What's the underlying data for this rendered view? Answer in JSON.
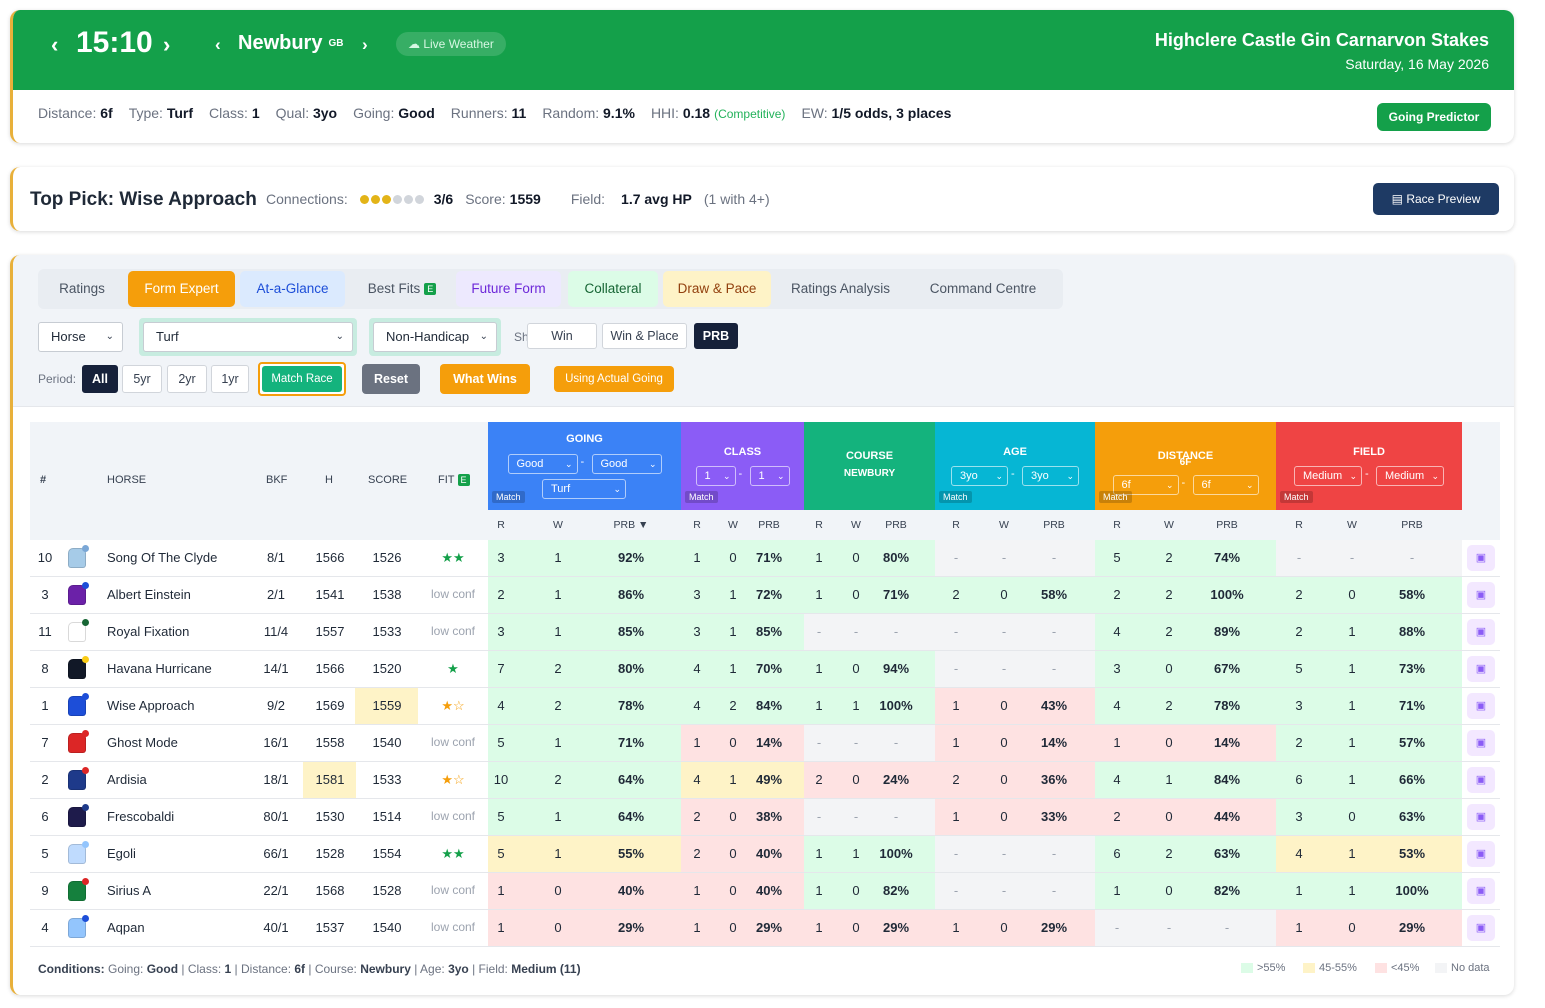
{
  "header": {
    "time": "15:10",
    "venue": "Newbury",
    "country": "GB",
    "weather_label": "Live Weather",
    "race_title": "Highclere Castle Gin Carnarvon Stakes",
    "race_date": "Saturday, 16 May 2026",
    "going_predictor": "Going Predictor",
    "meta": [
      {
        "label": "Distance:",
        "value": "6f"
      },
      {
        "label": "Type:",
        "value": "Turf"
      },
      {
        "label": "Class:",
        "value": "1"
      },
      {
        "label": "Qual:",
        "value": "3yo"
      },
      {
        "label": "Going:",
        "value": "Good"
      },
      {
        "label": "Runners:",
        "value": "11"
      },
      {
        "label": "Random:",
        "value": "9.1%"
      },
      {
        "label": "HHI:",
        "value": "0.18"
      },
      {
        "label": "EW:",
        "value": "1/5 odds, 3 places"
      }
    ],
    "hhi_note": "(Competitive)"
  },
  "top_pick": {
    "title": "Top Pick: Wise Approach",
    "connections_label": "Connections:",
    "connections_filled": 3,
    "connections_total": 6,
    "connections_value": "3/6",
    "score_label": "Score:",
    "score_value": "1559",
    "field_label": "Field:",
    "field_value": "1.7 avg HP",
    "field_note": "(1 with 4+)",
    "preview_btn": "Race Preview"
  },
  "tabs": [
    "Ratings",
    "Form Expert",
    "At-a-Glance",
    "Best Fits",
    "Future Form",
    "Collateral",
    "Draw & Pace",
    "Ratings Analysis",
    "Command Centre"
  ],
  "tab_badge": "E",
  "filters": {
    "horse": "Horse",
    "surface": "Turf",
    "handicap": "Non-Handicap",
    "show_label": "Show:",
    "show_options": [
      "Win",
      "Win & Place",
      "PRB"
    ],
    "period_label": "Period:",
    "periods": [
      "All",
      "5yr",
      "2yr",
      "1yr"
    ],
    "match_race": "Match Race",
    "reset": "Reset",
    "what_wins": "What Wins",
    "using_actual": "Using Actual Going"
  },
  "table": {
    "headers": {
      "num": "#",
      "horse": "HORSE",
      "bkf": "BKF",
      "h": "H",
      "score": "SCORE",
      "fit": "FIT",
      "fit_badge": "E"
    },
    "groups": [
      {
        "title": "GOING",
        "color": "#3b82f6",
        "sel1": "Good",
        "sel2": "Good",
        "sel3": "Turf",
        "match": "Match"
      },
      {
        "title": "CLASS",
        "color": "#8b5cf6",
        "sel1": "1",
        "sel2": "1",
        "match": "Match"
      },
      {
        "title": "COURSE",
        "sub": "NEWBURY",
        "color": "#14b37d"
      },
      {
        "title": "AGE",
        "color": "#06b6d4",
        "sel1": "3yo",
        "sel2": "3yo",
        "match": "Match"
      },
      {
        "title": "DISTANCE",
        "sub": "6F",
        "color": "#f59e0b",
        "sel1": "6f",
        "sel2": "6f",
        "match": "Match"
      },
      {
        "title": "FIELD",
        "color": "#ef4444",
        "sel1": "Medium",
        "sel2": "Medium",
        "match": "Match"
      }
    ],
    "sub_headers": [
      "R",
      "W",
      "PRB ▼",
      "R",
      "W",
      "PRB",
      "R",
      "W",
      "PRB",
      "R",
      "W",
      "PRB",
      "R",
      "W",
      "PRB",
      "R",
      "W",
      "PRB"
    ],
    "rows": [
      {
        "num": "10",
        "horse": "Song Of The Clyde",
        "bkf": "8/1",
        "h": "1566",
        "score": "1526",
        "fit": "★★",
        "fit_color": "#14a04a",
        "silk": "#a6cbe8",
        "dot": "#7aa7d6",
        "going": [
          "3",
          "1",
          "92%",
          "g"
        ],
        "class": [
          "1",
          "0",
          "71%",
          "g"
        ],
        "course": [
          "1",
          "0",
          "80%",
          "g"
        ],
        "age": [
          "-",
          "-",
          "-",
          "n"
        ],
        "dist": [
          "5",
          "2",
          "74%",
          "g"
        ],
        "field": [
          "-",
          "-",
          "-",
          "n"
        ]
      },
      {
        "num": "3",
        "horse": "Albert Einstein",
        "bkf": "2/1",
        "h": "1541",
        "score": "1538",
        "fit": "low conf",
        "silk": "#6b21a8",
        "dot": "#1d4ed8",
        "going": [
          "2",
          "1",
          "86%",
          "g"
        ],
        "class": [
          "3",
          "1",
          "72%",
          "g"
        ],
        "course": [
          "1",
          "0",
          "71%",
          "g"
        ],
        "age": [
          "2",
          "0",
          "58%",
          "g"
        ],
        "dist": [
          "2",
          "2",
          "100%",
          "g"
        ],
        "field": [
          "2",
          "0",
          "58%",
          "g"
        ]
      },
      {
        "num": "11",
        "horse": "Royal Fixation",
        "bkf": "11/4",
        "h": "1557",
        "score": "1533",
        "fit": "low conf",
        "silk": "#ffffff",
        "dot": "#166534",
        "going": [
          "3",
          "1",
          "85%",
          "g"
        ],
        "class": [
          "3",
          "1",
          "85%",
          "g"
        ],
        "course": [
          "-",
          "-",
          "-",
          "n"
        ],
        "age": [
          "-",
          "-",
          "-",
          "n"
        ],
        "dist": [
          "4",
          "2",
          "89%",
          "g"
        ],
        "field": [
          "2",
          "1",
          "88%",
          "g"
        ]
      },
      {
        "num": "8",
        "horse": "Havana Hurricane",
        "bkf": "14/1",
        "h": "1566",
        "score": "1520",
        "fit": "★",
        "fit_color": "#14a04a",
        "silk": "#111827",
        "dot": "#facc15",
        "going": [
          "7",
          "2",
          "80%",
          "g"
        ],
        "class": [
          "4",
          "1",
          "70%",
          "g"
        ],
        "course": [
          "1",
          "0",
          "94%",
          "g"
        ],
        "age": [
          "-",
          "-",
          "-",
          "n"
        ],
        "dist": [
          "3",
          "0",
          "67%",
          "g"
        ],
        "field": [
          "5",
          "1",
          "73%",
          "g"
        ]
      },
      {
        "num": "1",
        "horse": "Wise Approach",
        "bkf": "9/2",
        "h": "1569",
        "score": "1559",
        "score_hl": true,
        "fit": "★☆",
        "fit_color": "#f59e0b",
        "silk": "#1d4ed8",
        "dot": "#1d4ed8",
        "going": [
          "4",
          "2",
          "78%",
          "g"
        ],
        "class": [
          "4",
          "2",
          "84%",
          "g"
        ],
        "course": [
          "1",
          "1",
          "100%",
          "g"
        ],
        "age": [
          "1",
          "0",
          "43%",
          "r"
        ],
        "dist": [
          "4",
          "2",
          "78%",
          "g"
        ],
        "field": [
          "3",
          "1",
          "71%",
          "g"
        ]
      },
      {
        "num": "7",
        "horse": "Ghost Mode",
        "bkf": "16/1",
        "h": "1558",
        "score": "1540",
        "fit": "low conf",
        "silk": "#dc2626",
        "dot": "#dc2626",
        "going": [
          "5",
          "1",
          "71%",
          "g"
        ],
        "class": [
          "1",
          "0",
          "14%",
          "r"
        ],
        "course": [
          "-",
          "-",
          "-",
          "n"
        ],
        "age": [
          "1",
          "0",
          "14%",
          "r"
        ],
        "dist": [
          "1",
          "0",
          "14%",
          "r"
        ],
        "field": [
          "2",
          "1",
          "57%",
          "g"
        ]
      },
      {
        "num": "2",
        "horse": "Ardisia",
        "bkf": "18/1",
        "h": "1581",
        "h_hl": true,
        "score": "1533",
        "fit": "★☆",
        "fit_color": "#f59e0b",
        "silk": "#1e3a8a",
        "dot": "#dc2626",
        "going": [
          "10",
          "2",
          "64%",
          "g"
        ],
        "class": [
          "4",
          "1",
          "49%",
          "y"
        ],
        "course": [
          "2",
          "0",
          "24%",
          "r"
        ],
        "age": [
          "2",
          "0",
          "36%",
          "r"
        ],
        "dist": [
          "4",
          "1",
          "84%",
          "g"
        ],
        "field": [
          "6",
          "1",
          "66%",
          "g"
        ]
      },
      {
        "num": "6",
        "horse": "Frescobaldi",
        "bkf": "80/1",
        "h": "1530",
        "score": "1514",
        "fit": "low conf",
        "silk": "#1e1b4b",
        "dot": "#1e3a8a",
        "going": [
          "5",
          "1",
          "64%",
          "g"
        ],
        "class": [
          "2",
          "0",
          "38%",
          "r"
        ],
        "course": [
          "-",
          "-",
          "-",
          "n"
        ],
        "age": [
          "1",
          "0",
          "33%",
          "r"
        ],
        "dist": [
          "2",
          "0",
          "44%",
          "r"
        ],
        "field": [
          "3",
          "0",
          "63%",
          "g"
        ]
      },
      {
        "num": "5",
        "horse": "Egoli",
        "bkf": "66/1",
        "h": "1528",
        "score": "1554",
        "fit": "★★",
        "fit_color": "#14a04a",
        "silk": "#bfdbfe",
        "dot": "#93c5fd",
        "going": [
          "5",
          "1",
          "55%",
          "y"
        ],
        "class": [
          "2",
          "0",
          "40%",
          "r"
        ],
        "course": [
          "1",
          "1",
          "100%",
          "g"
        ],
        "age": [
          "-",
          "-",
          "-",
          "n"
        ],
        "dist": [
          "6",
          "2",
          "63%",
          "g"
        ],
        "field": [
          "4",
          "1",
          "53%",
          "y"
        ]
      },
      {
        "num": "9",
        "horse": "Sirius A",
        "bkf": "22/1",
        "h": "1568",
        "score": "1528",
        "fit": "low conf",
        "silk": "#15803d",
        "dot": "#dc2626",
        "going": [
          "1",
          "0",
          "40%",
          "r"
        ],
        "class": [
          "1",
          "0",
          "40%",
          "r"
        ],
        "course": [
          "1",
          "0",
          "82%",
          "g"
        ],
        "age": [
          "-",
          "-",
          "-",
          "n"
        ],
        "dist": [
          "1",
          "0",
          "82%",
          "g"
        ],
        "field": [
          "1",
          "1",
          "100%",
          "g"
        ]
      },
      {
        "num": "4",
        "horse": "Aqpan",
        "bkf": "40/1",
        "h": "1537",
        "score": "1540",
        "fit": "low conf",
        "silk": "#93c5fd",
        "dot": "#1d4ed8",
        "going": [
          "1",
          "0",
          "29%",
          "r"
        ],
        "class": [
          "1",
          "0",
          "29%",
          "r"
        ],
        "course": [
          "1",
          "0",
          "29%",
          "r"
        ],
        "age": [
          "1",
          "0",
          "29%",
          "r"
        ],
        "dist": [
          "-",
          "-",
          "-",
          "n"
        ],
        "field": [
          "1",
          "0",
          "29%",
          "r"
        ]
      }
    ]
  },
  "conditions": {
    "label": "Conditions:",
    "items": [
      {
        "k": "Going:",
        "v": "Good"
      },
      {
        "k": "Class:",
        "v": "1"
      },
      {
        "k": "Distance:",
        "v": "6f"
      },
      {
        "k": "Course:",
        "v": "Newbury"
      },
      {
        "k": "Age:",
        "v": "3yo"
      },
      {
        "k": "Field:",
        "v": "Medium (11)"
      }
    ]
  },
  "legend": [
    {
      "label": ">55%",
      "color": "#dcfce7"
    },
    {
      "label": "45-55%",
      "color": "#fef3c7"
    },
    {
      "label": "<45%",
      "color": "#fee2e2"
    },
    {
      "label": "No data",
      "color": "#f3f4f6"
    }
  ]
}
